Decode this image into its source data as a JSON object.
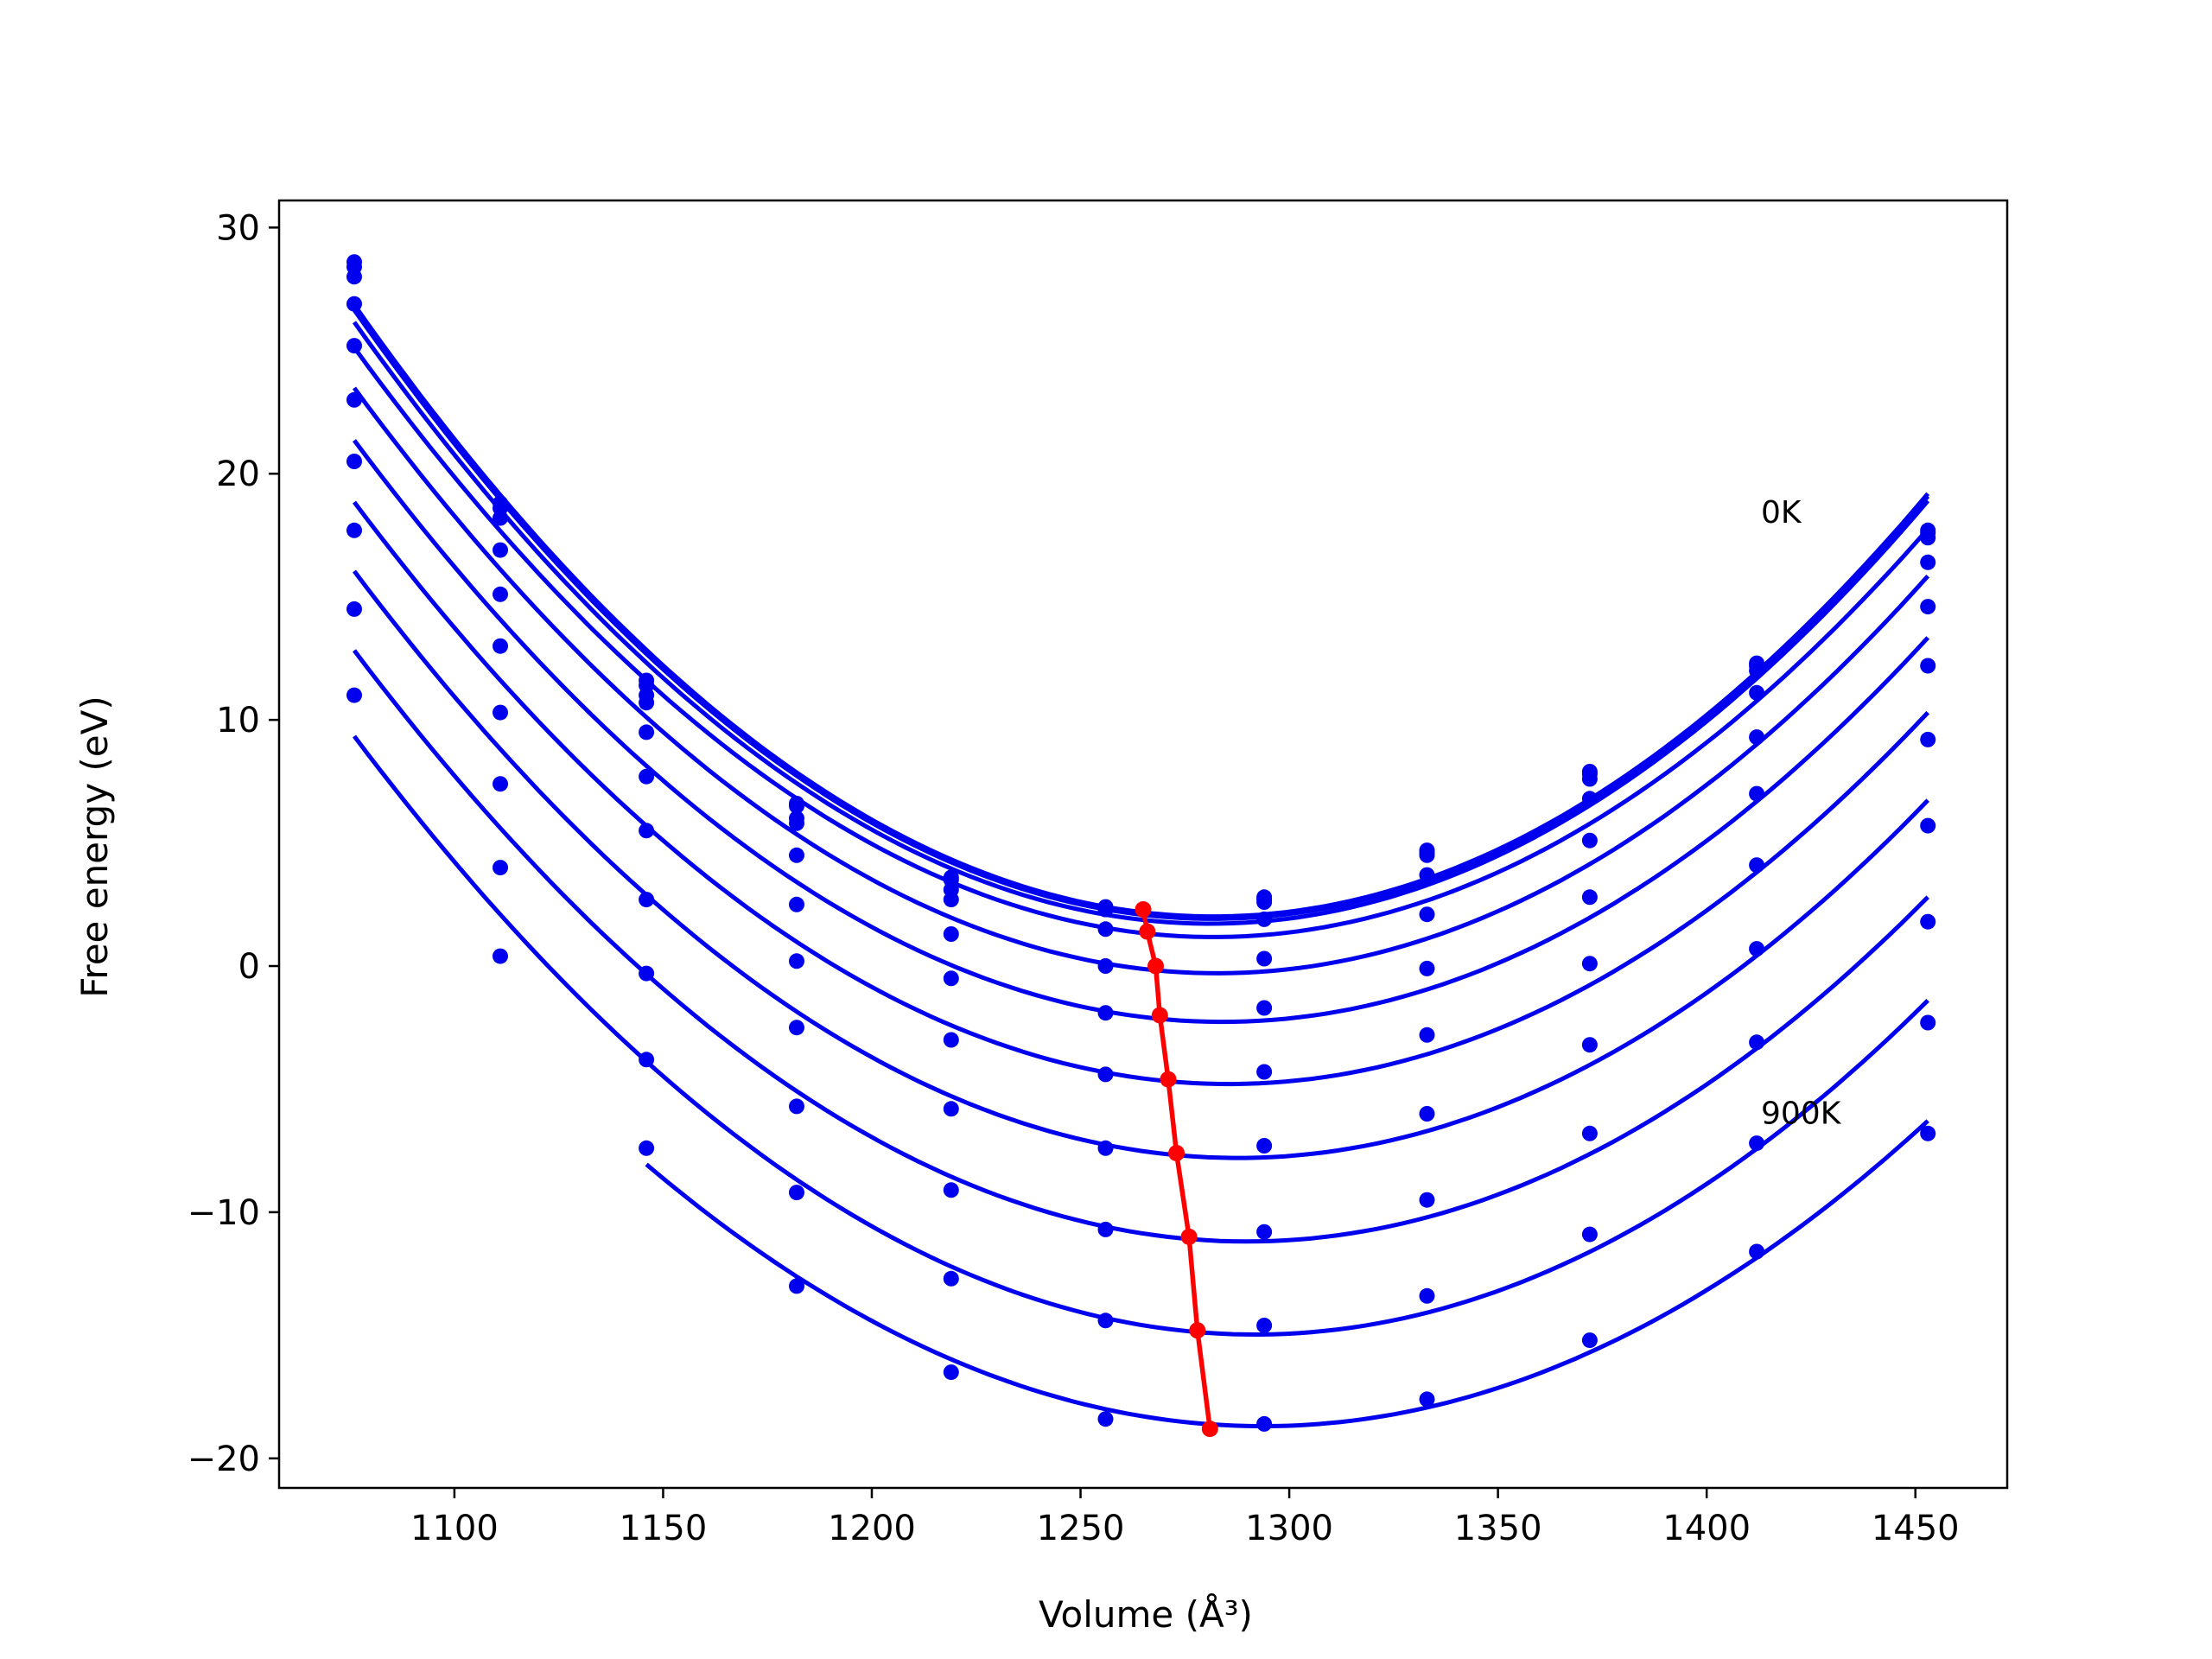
{
  "chart_data": {
    "type": "line",
    "xlabel": "Volume (Å³)",
    "ylabel": "Free energy (eV)",
    "xlim": [
      1058,
      1472
    ],
    "ylim": [
      -21.2,
      31.1
    ],
    "xticks": [
      1100,
      1150,
      1200,
      1250,
      1300,
      1350,
      1400,
      1450
    ],
    "yticks": [
      -20,
      -10,
      0,
      10,
      20,
      30
    ],
    "grid": false,
    "colors": {
      "curves": "#0000ee",
      "minima": "#ff0000"
    },
    "volumes": [
      1076,
      1111,
      1146,
      1182,
      1219,
      1256,
      1294,
      1333,
      1372,
      1412,
      1453
    ],
    "series": [
      {
        "values": [
          28.6,
          18.8,
          11.6,
          6.6,
          3.6,
          2.4,
          2.8,
          4.7,
          7.9,
          12.3,
          17.7
        ]
      },
      {
        "values": [
          28.4,
          18.6,
          11.4,
          6.5,
          3.5,
          2.3,
          2.7,
          4.6,
          7.8,
          12.2,
          17.6
        ]
      },
      {
        "values": [
          28.0,
          18.2,
          11.0,
          6.0,
          3.1,
          2.3,
          2.6,
          4.5,
          7.6,
          12.0,
          17.4
        ]
      },
      {
        "values": [
          26.9,
          16.9,
          10.7,
          5.8,
          2.7,
          1.5,
          1.9,
          3.7,
          6.8,
          11.1,
          16.4
        ]
      },
      {
        "values": [
          25.2,
          15.1,
          9.5,
          4.5,
          1.3,
          0.0,
          0.3,
          2.1,
          5.1,
          9.3,
          14.6
        ]
      },
      {
        "values": [
          23.0,
          13.0,
          7.7,
          2.5,
          -0.5,
          -1.9,
          -1.7,
          -0.1,
          2.8,
          7.0,
          12.2
        ]
      },
      {
        "values": [
          20.5,
          10.3,
          5.5,
          0.2,
          -3.0,
          -4.4,
          -4.3,
          -2.8,
          0.1,
          4.1,
          9.2
        ]
      },
      {
        "values": [
          17.7,
          7.4,
          2.7,
          -2.5,
          -5.8,
          -7.4,
          -7.3,
          -6.0,
          -3.2,
          0.7,
          5.7
        ]
      },
      {
        "values": [
          14.5,
          4.0,
          -0.3,
          -5.7,
          -9.1,
          -10.7,
          -10.8,
          -9.5,
          -6.8,
          -3.1,
          1.8
        ]
      },
      {
        "values": [
          11.0,
          0.4,
          -3.8,
          -9.2,
          -12.7,
          -14.4,
          -14.6,
          -13.4,
          -10.9,
          -7.2,
          -2.3
        ]
      },
      {
        "values": [
          null,
          null,
          -7.4,
          -13.0,
          -16.5,
          -18.4,
          -18.6,
          -17.6,
          -15.2,
          -11.6,
          -6.8
        ]
      }
    ],
    "minima": {
      "x": [
        1265,
        1266,
        1268,
        1269,
        1271,
        1273,
        1276,
        1278,
        1281
      ],
      "y": [
        2.3,
        1.4,
        0.0,
        -2.0,
        -4.6,
        -7.6,
        -11.0,
        -14.8,
        -18.8
      ]
    },
    "annotations": [
      {
        "text": "0K",
        "x": 1413,
        "y": 18.0
      },
      {
        "text": "900K",
        "x": 1413,
        "y": -6.4
      }
    ]
  }
}
